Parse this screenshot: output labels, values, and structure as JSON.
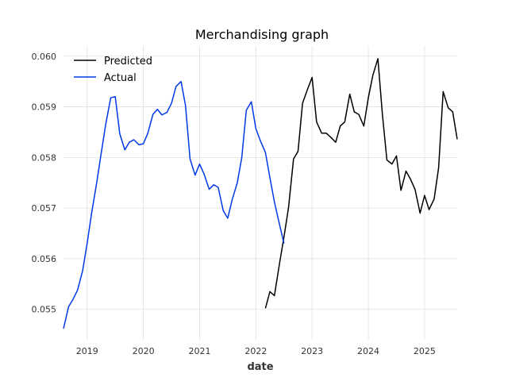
{
  "chart_data": {
    "type": "line",
    "title": "Merchandising graph",
    "xlabel": "date",
    "ylabel": "",
    "x_ticks": [
      "2019",
      "2020",
      "2021",
      "2022",
      "2023",
      "2024",
      "2025"
    ],
    "y_ticks": [
      "0.055",
      "0.056",
      "0.057",
      "0.058",
      "0.059",
      "0.060"
    ],
    "xlim": [
      2018.58,
      2025.58
    ],
    "ylim": [
      0.0544,
      0.0602
    ],
    "grid": true,
    "legend_position": "top-left",
    "series": [
      {
        "name": "Predicted",
        "color": "#000000",
        "points": [
          [
            2022.17,
            0.05502
          ],
          [
            2022.25,
            0.05535
          ],
          [
            2022.33,
            0.05527
          ],
          [
            2022.42,
            0.0559
          ],
          [
            2022.5,
            0.05643
          ],
          [
            2022.58,
            0.057
          ],
          [
            2022.67,
            0.05797
          ],
          [
            2022.75,
            0.05812
          ],
          [
            2022.83,
            0.05907
          ],
          [
            2022.92,
            0.05935
          ],
          [
            2023.0,
            0.05958
          ],
          [
            2023.08,
            0.0587
          ],
          [
            2023.17,
            0.05848
          ],
          [
            2023.25,
            0.05848
          ],
          [
            2023.33,
            0.0584
          ],
          [
            2023.42,
            0.0583
          ],
          [
            2023.5,
            0.05862
          ],
          [
            2023.58,
            0.0587
          ],
          [
            2023.67,
            0.05925
          ],
          [
            2023.75,
            0.0589
          ],
          [
            2023.83,
            0.05885
          ],
          [
            2023.92,
            0.05862
          ],
          [
            2024.0,
            0.05918
          ],
          [
            2024.08,
            0.05962
          ],
          [
            2024.17,
            0.05995
          ],
          [
            2024.25,
            0.05885
          ],
          [
            2024.33,
            0.05795
          ],
          [
            2024.42,
            0.05787
          ],
          [
            2024.5,
            0.05803
          ],
          [
            2024.58,
            0.05735
          ],
          [
            2024.67,
            0.05773
          ],
          [
            2024.75,
            0.05757
          ],
          [
            2024.83,
            0.05737
          ],
          [
            2024.92,
            0.0569
          ],
          [
            2025.0,
            0.05725
          ],
          [
            2025.08,
            0.05697
          ],
          [
            2025.17,
            0.05718
          ],
          [
            2025.25,
            0.0578
          ],
          [
            2025.33,
            0.0593
          ],
          [
            2025.42,
            0.05898
          ],
          [
            2025.5,
            0.0589
          ],
          [
            2025.58,
            0.05836
          ]
        ]
      },
      {
        "name": "Actual",
        "color": "#0039e6",
        "points": [
          [
            2018.58,
            0.05462
          ],
          [
            2018.67,
            0.05505
          ],
          [
            2018.75,
            0.0552
          ],
          [
            2018.83,
            0.05538
          ],
          [
            2018.92,
            0.05576
          ],
          [
            2019.0,
            0.0563
          ],
          [
            2019.08,
            0.0569
          ],
          [
            2019.17,
            0.0575
          ],
          [
            2019.25,
            0.05808
          ],
          [
            2019.33,
            0.05865
          ],
          [
            2019.42,
            0.05918
          ],
          [
            2019.5,
            0.0592
          ],
          [
            2019.58,
            0.05847
          ],
          [
            2019.67,
            0.05815
          ],
          [
            2019.75,
            0.0583
          ],
          [
            2019.83,
            0.05835
          ],
          [
            2019.92,
            0.05825
          ],
          [
            2020.0,
            0.05827
          ],
          [
            2020.08,
            0.05848
          ],
          [
            2020.17,
            0.05885
          ],
          [
            2020.25,
            0.05895
          ],
          [
            2020.33,
            0.05884
          ],
          [
            2020.42,
            0.05889
          ],
          [
            2020.5,
            0.05907
          ],
          [
            2020.58,
            0.0594
          ],
          [
            2020.67,
            0.0595
          ],
          [
            2020.75,
            0.05902
          ],
          [
            2020.83,
            0.05797
          ],
          [
            2020.92,
            0.05765
          ],
          [
            2021.0,
            0.05787
          ],
          [
            2021.08,
            0.05767
          ],
          [
            2021.17,
            0.05737
          ],
          [
            2021.25,
            0.05746
          ],
          [
            2021.33,
            0.05741
          ],
          [
            2021.42,
            0.05695
          ],
          [
            2021.5,
            0.0568
          ],
          [
            2021.58,
            0.05717
          ],
          [
            2021.67,
            0.0575
          ],
          [
            2021.75,
            0.058
          ],
          [
            2021.83,
            0.05893
          ],
          [
            2021.92,
            0.0591
          ],
          [
            2022.0,
            0.05857
          ],
          [
            2022.08,
            0.05833
          ],
          [
            2022.17,
            0.0581
          ],
          [
            2022.25,
            0.0576
          ],
          [
            2022.33,
            0.05712
          ],
          [
            2022.42,
            0.05668
          ],
          [
            2022.5,
            0.0563
          ]
        ]
      }
    ]
  }
}
